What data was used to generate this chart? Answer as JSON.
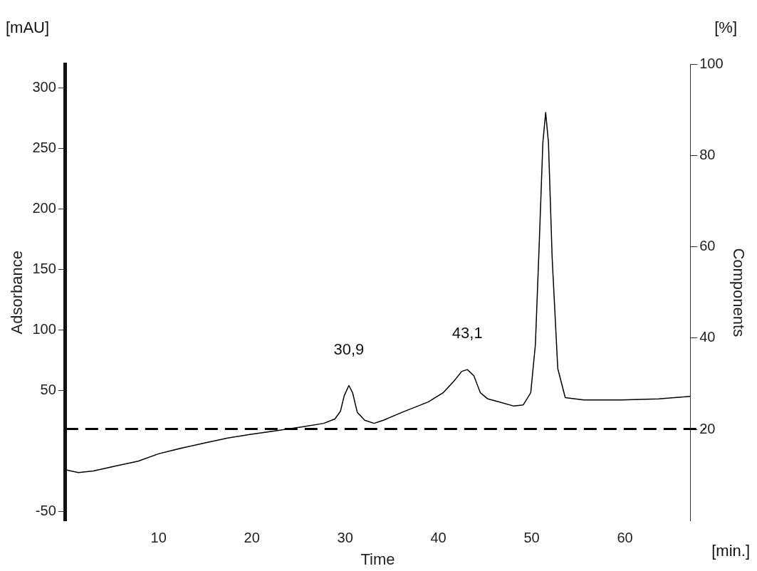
{
  "chart_data": {
    "type": "line",
    "xlabel": "Time",
    "ylabel": "Adsorbance",
    "y2label": "Components",
    "annotations": [
      "[mAU]",
      "[%]",
      "[min.]",
      {
        "text": "30,9",
        "x": 30.4,
        "y": 54
      },
      {
        "text": "43,1",
        "x": 43.1,
        "y": 67
      }
    ],
    "series": [
      {
        "color": "#000000",
        "x": [
          0,
          1.4,
          3,
          5.4,
          7.8,
          10,
          12.6,
          15,
          17.4,
          19.9,
          22.2,
          25.3,
          27.7,
          28.9,
          29.5,
          29.9,
          30.4,
          30.8,
          31.3,
          32.1,
          33.1,
          34.1,
          36.1,
          38.9,
          40.5,
          41.7,
          42.5,
          43.1,
          43.8,
          44.5,
          45.3,
          46.5,
          48.1,
          49.1,
          49.9,
          50.4,
          50.8,
          51.2,
          51.5,
          51.8,
          52.2,
          52.8,
          53.6,
          55.6,
          59.6,
          63.6,
          67
        ],
        "values": [
          -15.7,
          -18,
          -16.7,
          -12.6,
          -8.6,
          -2.5,
          2.5,
          6.6,
          10.6,
          13.6,
          16.2,
          19.7,
          22.7,
          26.3,
          32.8,
          45.5,
          54,
          48,
          31.8,
          25.3,
          22.7,
          25.3,
          31.8,
          40.4,
          48,
          58,
          65.7,
          67.2,
          62.1,
          48,
          42.9,
          40.4,
          37,
          38,
          48,
          88,
          169,
          255,
          280,
          255,
          159,
          68,
          44,
          42,
          42,
          43,
          45
        ]
      }
    ],
    "xlim": [
      0,
      67
    ],
    "xticks": [
      10,
      20,
      30,
      40,
      50,
      60
    ],
    "ylim": [
      -58,
      320
    ],
    "yticks": [
      -50,
      50,
      100,
      150,
      200,
      250,
      300
    ],
    "y2lim": [
      0,
      100
    ],
    "y2ticks": [
      20,
      40,
      60,
      80,
      100
    ],
    "ref_lines": [
      {
        "axis": "y",
        "value": 18,
        "color": "#000000",
        "line_style": "dashed"
      }
    ],
    "grid": false,
    "legend": false,
    "line_style": "solid"
  }
}
